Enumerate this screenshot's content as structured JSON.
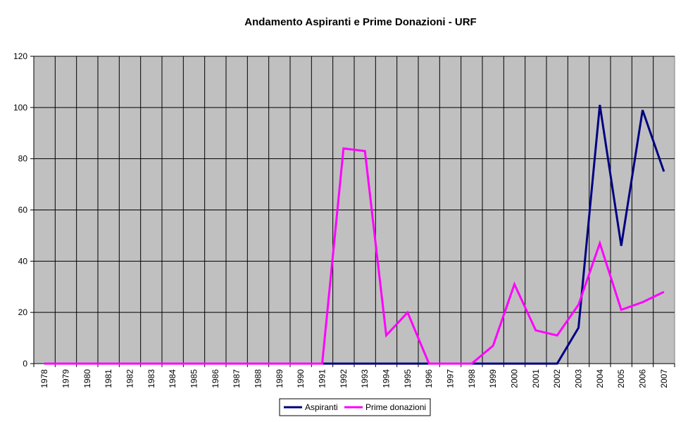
{
  "chart_data": {
    "type": "line",
    "title": "Andamento Aspiranti e Prime Donazioni - URF",
    "xlabel": "",
    "ylabel": "",
    "ylim": [
      0,
      120
    ],
    "yticks": [
      0,
      20,
      40,
      60,
      80,
      100,
      120
    ],
    "grid": true,
    "legend_position": "bottom-center",
    "plot_background": "#c0c0c0",
    "categories": [
      "1978",
      "1979",
      "1980",
      "1981",
      "1982",
      "1983",
      "1984",
      "1985",
      "1986",
      "1987",
      "1988",
      "1989",
      "1990",
      "1991",
      "1992",
      "1993",
      "1994",
      "1995",
      "1996",
      "1997",
      "1998",
      "1999",
      "2000",
      "2001",
      "2002",
      "2003",
      "2004",
      "2005",
      "2006",
      "2007"
    ],
    "series": [
      {
        "name": "Aspiranti",
        "color": "#000080",
        "values": [
          0,
          0,
          0,
          0,
          0,
          0,
          0,
          0,
          0,
          0,
          0,
          0,
          0,
          0,
          0,
          0,
          0,
          0,
          0,
          0,
          0,
          0,
          0,
          0,
          0,
          14,
          101,
          46,
          99,
          75
        ]
      },
      {
        "name": "Prime donazioni",
        "color": "#ff00ff",
        "values": [
          0,
          0,
          0,
          0,
          0,
          0,
          0,
          0,
          0,
          0,
          0,
          0,
          0,
          0,
          84,
          83,
          11,
          20,
          0,
          0,
          0,
          7,
          31,
          13,
          11,
          23,
          47,
          21,
          24,
          28
        ]
      }
    ]
  }
}
